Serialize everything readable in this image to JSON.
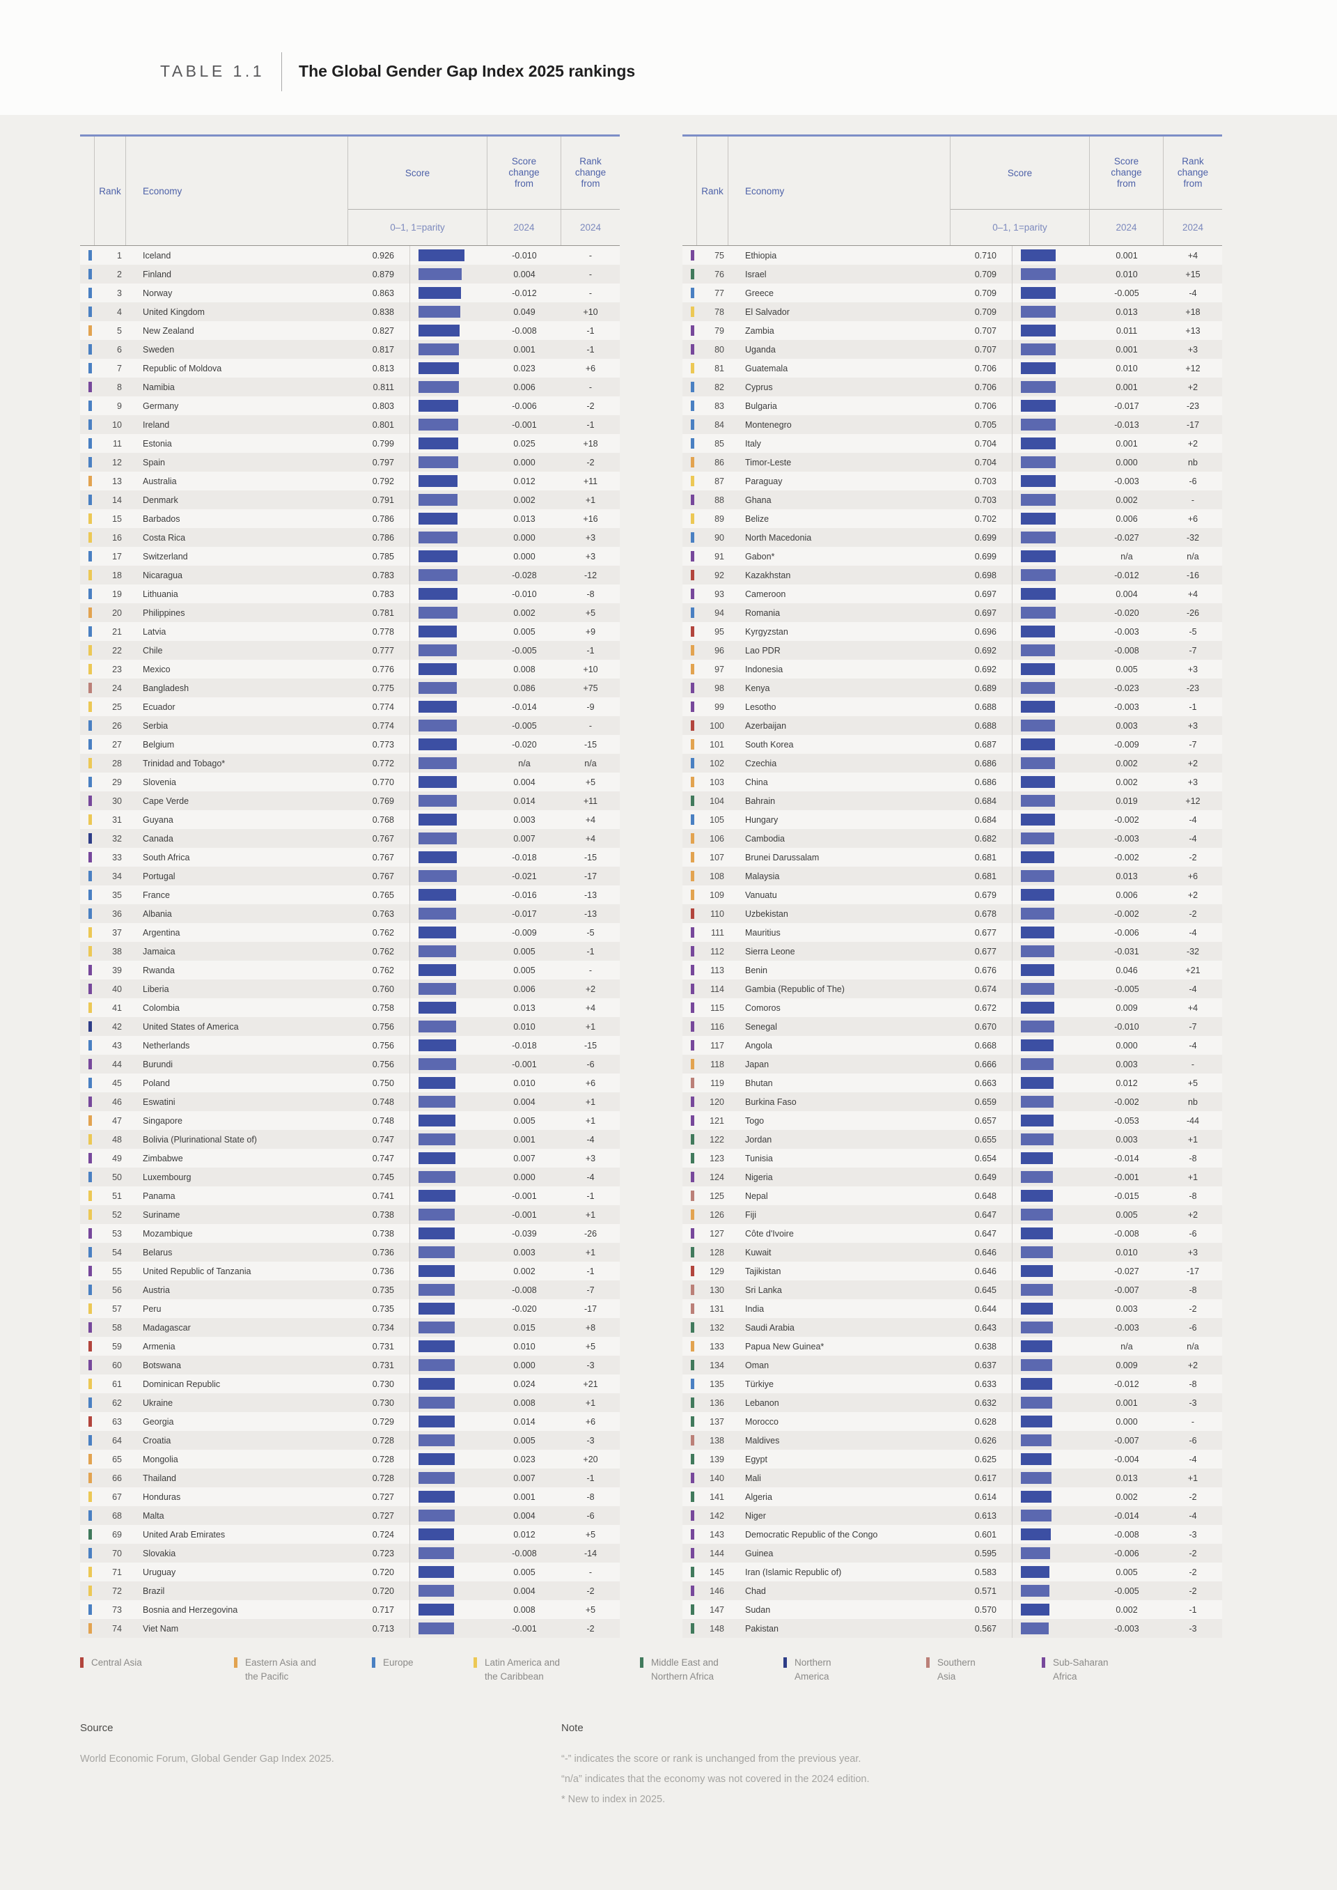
{
  "page": {
    "table_label": "TABLE 1.1",
    "title": "The Global Gender Gap Index 2025 rankings"
  },
  "columns": {
    "rank": "Rank",
    "economy": "Economy",
    "score": "Score",
    "score_sub": "0–1, 1=parity",
    "score_change": "Score change from",
    "rank_change": "Rank change from",
    "change_sub": "2024"
  },
  "bar_colors": {
    "dark": "#3c4fa3",
    "light": "#5b68b0"
  },
  "regions": {
    "ca": {
      "label": "Central Asia",
      "color": "#b2453d"
    },
    "eap": {
      "label": "Eastern Asia and the Pacific",
      "color": "#e2a350"
    },
    "eu": {
      "label": "Europe",
      "color": "#4a80c2"
    },
    "lac": {
      "label": "Latin America and the Caribbean",
      "color": "#ecc855"
    },
    "mena": {
      "label": "Middle East and Northern Africa",
      "color": "#417a5c"
    },
    "na": {
      "label": "Northern America",
      "color": "#2e3d87"
    },
    "sa": {
      "label": "Southern Asia",
      "color": "#bb8078"
    },
    "ssa": {
      "label": "Sub-Saharan Africa",
      "color": "#77489b"
    }
  },
  "legend": {
    "items": [
      {
        "region": "ca",
        "label": "Central Asia"
      },
      {
        "region": "eap",
        "label": "Eastern Asia and the Pacific"
      },
      {
        "region": "eu",
        "label": "Europe"
      },
      {
        "region": "lac",
        "label": "Latin America and the Caribbean"
      },
      {
        "region": "mena",
        "label": "Middle East and Northern Africa"
      },
      {
        "region": "na",
        "label": "Northern America"
      },
      {
        "region": "sa",
        "label": "Southern Asia"
      },
      {
        "region": "ssa",
        "label": "Sub-Saharan Africa"
      }
    ]
  },
  "row_fields": [
    "rank",
    "economy",
    "region",
    "score",
    "score_change_from_2024",
    "rank_change_from_2024"
  ],
  "rows": [
    [
      1,
      "Iceland",
      "eu",
      "0.926",
      "-0.010",
      "-"
    ],
    [
      2,
      "Finland",
      "eu",
      "0.879",
      "0.004",
      "-"
    ],
    [
      3,
      "Norway",
      "eu",
      "0.863",
      "-0.012",
      "-"
    ],
    [
      4,
      "United Kingdom",
      "eu",
      "0.838",
      "0.049",
      "+10"
    ],
    [
      5,
      "New Zealand",
      "eap",
      "0.827",
      "-0.008",
      "-1"
    ],
    [
      6,
      "Sweden",
      "eu",
      "0.817",
      "0.001",
      "-1"
    ],
    [
      7,
      "Republic of Moldova",
      "eu",
      "0.813",
      "0.023",
      "+6"
    ],
    [
      8,
      "Namibia",
      "ssa",
      "0.811",
      "0.006",
      "-"
    ],
    [
      9,
      "Germany",
      "eu",
      "0.803",
      "-0.006",
      "-2"
    ],
    [
      10,
      "Ireland",
      "eu",
      "0.801",
      "-0.001",
      "-1"
    ],
    [
      11,
      "Estonia",
      "eu",
      "0.799",
      "0.025",
      "+18"
    ],
    [
      12,
      "Spain",
      "eu",
      "0.797",
      "0.000",
      "-2"
    ],
    [
      13,
      "Australia",
      "eap",
      "0.792",
      "0.012",
      "+11"
    ],
    [
      14,
      "Denmark",
      "eu",
      "0.791",
      "0.002",
      "+1"
    ],
    [
      15,
      "Barbados",
      "lac",
      "0.786",
      "0.013",
      "+16"
    ],
    [
      16,
      "Costa Rica",
      "lac",
      "0.786",
      "0.000",
      "+3"
    ],
    [
      17,
      "Switzerland",
      "eu",
      "0.785",
      "0.000",
      "+3"
    ],
    [
      18,
      "Nicaragua",
      "lac",
      "0.783",
      "-0.028",
      "-12"
    ],
    [
      19,
      "Lithuania",
      "eu",
      "0.783",
      "-0.010",
      "-8"
    ],
    [
      20,
      "Philippines",
      "eap",
      "0.781",
      "0.002",
      "+5"
    ],
    [
      21,
      "Latvia",
      "eu",
      "0.778",
      "0.005",
      "+9"
    ],
    [
      22,
      "Chile",
      "lac",
      "0.777",
      "-0.005",
      "-1"
    ],
    [
      23,
      "Mexico",
      "lac",
      "0.776",
      "0.008",
      "+10"
    ],
    [
      24,
      "Bangladesh",
      "sa",
      "0.775",
      "0.086",
      "+75"
    ],
    [
      25,
      "Ecuador",
      "lac",
      "0.774",
      "-0.014",
      "-9"
    ],
    [
      26,
      "Serbia",
      "eu",
      "0.774",
      "-0.005",
      "-"
    ],
    [
      27,
      "Belgium",
      "eu",
      "0.773",
      "-0.020",
      "-15"
    ],
    [
      28,
      "Trinidad and Tobago*",
      "lac",
      "0.772",
      "n/a",
      "n/a"
    ],
    [
      29,
      "Slovenia",
      "eu",
      "0.770",
      "0.004",
      "+5"
    ],
    [
      30,
      "Cape Verde",
      "ssa",
      "0.769",
      "0.014",
      "+11"
    ],
    [
      31,
      "Guyana",
      "lac",
      "0.768",
      "0.003",
      "+4"
    ],
    [
      32,
      "Canada",
      "na",
      "0.767",
      "0.007",
      "+4"
    ],
    [
      33,
      "South Africa",
      "ssa",
      "0.767",
      "-0.018",
      "-15"
    ],
    [
      34,
      "Portugal",
      "eu",
      "0.767",
      "-0.021",
      "-17"
    ],
    [
      35,
      "France",
      "eu",
      "0.765",
      "-0.016",
      "-13"
    ],
    [
      36,
      "Albania",
      "eu",
      "0.763",
      "-0.017",
      "-13"
    ],
    [
      37,
      "Argentina",
      "lac",
      "0.762",
      "-0.009",
      "-5"
    ],
    [
      38,
      "Jamaica",
      "lac",
      "0.762",
      "0.005",
      "-1"
    ],
    [
      39,
      "Rwanda",
      "ssa",
      "0.762",
      "0.005",
      "-"
    ],
    [
      40,
      "Liberia",
      "ssa",
      "0.760",
      "0.006",
      "+2"
    ],
    [
      41,
      "Colombia",
      "lac",
      "0.758",
      "0.013",
      "+4"
    ],
    [
      42,
      "United States of America",
      "na",
      "0.756",
      "0.010",
      "+1"
    ],
    [
      43,
      "Netherlands",
      "eu",
      "0.756",
      "-0.018",
      "-15"
    ],
    [
      44,
      "Burundi",
      "ssa",
      "0.756",
      "-0.001",
      "-6"
    ],
    [
      45,
      "Poland",
      "eu",
      "0.750",
      "0.010",
      "+6"
    ],
    [
      46,
      "Eswatini",
      "ssa",
      "0.748",
      "0.004",
      "+1"
    ],
    [
      47,
      "Singapore",
      "eap",
      "0.748",
      "0.005",
      "+1"
    ],
    [
      48,
      "Bolivia (Plurinational State of)",
      "lac",
      "0.747",
      "0.001",
      "-4"
    ],
    [
      49,
      "Zimbabwe",
      "ssa",
      "0.747",
      "0.007",
      "+3"
    ],
    [
      50,
      "Luxembourg",
      "eu",
      "0.745",
      "0.000",
      "-4"
    ],
    [
      51,
      "Panama",
      "lac",
      "0.741",
      "-0.001",
      "-1"
    ],
    [
      52,
      "Suriname",
      "lac",
      "0.738",
      "-0.001",
      "+1"
    ],
    [
      53,
      "Mozambique",
      "ssa",
      "0.738",
      "-0.039",
      "-26"
    ],
    [
      54,
      "Belarus",
      "eu",
      "0.736",
      "0.003",
      "+1"
    ],
    [
      55,
      "United Republic of Tanzania",
      "ssa",
      "0.736",
      "0.002",
      "-1"
    ],
    [
      56,
      "Austria",
      "eu",
      "0.735",
      "-0.008",
      "-7"
    ],
    [
      57,
      "Peru",
      "lac",
      "0.735",
      "-0.020",
      "-17"
    ],
    [
      58,
      "Madagascar",
      "ssa",
      "0.734",
      "0.015",
      "+8"
    ],
    [
      59,
      "Armenia",
      "ca",
      "0.731",
      "0.010",
      "+5"
    ],
    [
      60,
      "Botswana",
      "ssa",
      "0.731",
      "0.000",
      "-3"
    ],
    [
      61,
      "Dominican Republic",
      "lac",
      "0.730",
      "0.024",
      "+21"
    ],
    [
      62,
      "Ukraine",
      "eu",
      "0.730",
      "0.008",
      "+1"
    ],
    [
      63,
      "Georgia",
      "ca",
      "0.729",
      "0.014",
      "+6"
    ],
    [
      64,
      "Croatia",
      "eu",
      "0.728",
      "0.005",
      "-3"
    ],
    [
      65,
      "Mongolia",
      "eap",
      "0.728",
      "0.023",
      "+20"
    ],
    [
      66,
      "Thailand",
      "eap",
      "0.728",
      "0.007",
      "-1"
    ],
    [
      67,
      "Honduras",
      "lac",
      "0.727",
      "0.001",
      "-8"
    ],
    [
      68,
      "Malta",
      "eu",
      "0.727",
      "0.004",
      "-6"
    ],
    [
      69,
      "United Arab Emirates",
      "mena",
      "0.724",
      "0.012",
      "+5"
    ],
    [
      70,
      "Slovakia",
      "eu",
      "0.723",
      "-0.008",
      "-14"
    ],
    [
      71,
      "Uruguay",
      "lac",
      "0.720",
      "0.005",
      "-"
    ],
    [
      72,
      "Brazil",
      "lac",
      "0.720",
      "0.004",
      "-2"
    ],
    [
      73,
      "Bosnia and Herzegovina",
      "eu",
      "0.717",
      "0.008",
      "+5"
    ],
    [
      74,
      "Viet Nam",
      "eap",
      "0.713",
      "-0.001",
      "-2"
    ],
    [
      75,
      "Ethiopia",
      "ssa",
      "0.710",
      "0.001",
      "+4"
    ],
    [
      76,
      "Israel",
      "mena",
      "0.709",
      "0.010",
      "+15"
    ],
    [
      77,
      "Greece",
      "eu",
      "0.709",
      "-0.005",
      "-4"
    ],
    [
      78,
      "El Salvador",
      "lac",
      "0.709",
      "0.013",
      "+18"
    ],
    [
      79,
      "Zambia",
      "ssa",
      "0.707",
      "0.011",
      "+13"
    ],
    [
      80,
      "Uganda",
      "ssa",
      "0.707",
      "0.001",
      "+3"
    ],
    [
      81,
      "Guatemala",
      "lac",
      "0.706",
      "0.010",
      "+12"
    ],
    [
      82,
      "Cyprus",
      "eu",
      "0.706",
      "0.001",
      "+2"
    ],
    [
      83,
      "Bulgaria",
      "eu",
      "0.706",
      "-0.017",
      "-23"
    ],
    [
      84,
      "Montenegro",
      "eu",
      "0.705",
      "-0.013",
      "-17"
    ],
    [
      85,
      "Italy",
      "eu",
      "0.704",
      "0.001",
      "+2"
    ],
    [
      86,
      "Timor-Leste",
      "eap",
      "0.704",
      "0.000",
      "nb"
    ],
    [
      87,
      "Paraguay",
      "lac",
      "0.703",
      "-0.003",
      "-6"
    ],
    [
      88,
      "Ghana",
      "ssa",
      "0.703",
      "0.002",
      "-"
    ],
    [
      89,
      "Belize",
      "lac",
      "0.702",
      "0.006",
      "+6"
    ],
    [
      90,
      "North Macedonia",
      "eu",
      "0.699",
      "-0.027",
      "-32"
    ],
    [
      91,
      "Gabon*",
      "ssa",
      "0.699",
      "n/a",
      "n/a"
    ],
    [
      92,
      "Kazakhstan",
      "ca",
      "0.698",
      "-0.012",
      "-16"
    ],
    [
      93,
      "Cameroon",
      "ssa",
      "0.697",
      "0.004",
      "+4"
    ],
    [
      94,
      "Romania",
      "eu",
      "0.697",
      "-0.020",
      "-26"
    ],
    [
      95,
      "Kyrgyzstan",
      "ca",
      "0.696",
      "-0.003",
      "-5"
    ],
    [
      96,
      "Lao PDR",
      "eap",
      "0.692",
      "-0.008",
      "-7"
    ],
    [
      97,
      "Indonesia",
      "eap",
      "0.692",
      "0.005",
      "+3"
    ],
    [
      98,
      "Kenya",
      "ssa",
      "0.689",
      "-0.023",
      "-23"
    ],
    [
      99,
      "Lesotho",
      "ssa",
      "0.688",
      "-0.003",
      "-1"
    ],
    [
      100,
      "Azerbaijan",
      "ca",
      "0.688",
      "0.003",
      "+3"
    ],
    [
      101,
      "South Korea",
      "eap",
      "0.687",
      "-0.009",
      "-7"
    ],
    [
      102,
      "Czechia",
      "eu",
      "0.686",
      "0.002",
      "+2"
    ],
    [
      103,
      "China",
      "eap",
      "0.686",
      "0.002",
      "+3"
    ],
    [
      104,
      "Bahrain",
      "mena",
      "0.684",
      "0.019",
      "+12"
    ],
    [
      105,
      "Hungary",
      "eu",
      "0.684",
      "-0.002",
      "-4"
    ],
    [
      106,
      "Cambodia",
      "eap",
      "0.682",
      "-0.003",
      "-4"
    ],
    [
      107,
      "Brunei Darussalam",
      "eap",
      "0.681",
      "-0.002",
      "-2"
    ],
    [
      108,
      "Malaysia",
      "eap",
      "0.681",
      "0.013",
      "+6"
    ],
    [
      109,
      "Vanuatu",
      "eap",
      "0.679",
      "0.006",
      "+2"
    ],
    [
      110,
      "Uzbekistan",
      "ca",
      "0.678",
      "-0.002",
      "-2"
    ],
    [
      111,
      "Mauritius",
      "ssa",
      "0.677",
      "-0.006",
      "-4"
    ],
    [
      112,
      "Sierra Leone",
      "ssa",
      "0.677",
      "-0.031",
      "-32"
    ],
    [
      113,
      "Benin",
      "ssa",
      "0.676",
      "0.046",
      "+21"
    ],
    [
      114,
      "Gambia (Republic of The)",
      "ssa",
      "0.674",
      "-0.005",
      "-4"
    ],
    [
      115,
      "Comoros",
      "ssa",
      "0.672",
      "0.009",
      "+4"
    ],
    [
      116,
      "Senegal",
      "ssa",
      "0.670",
      "-0.010",
      "-7"
    ],
    [
      117,
      "Angola",
      "ssa",
      "0.668",
      "0.000",
      "-4"
    ],
    [
      118,
      "Japan",
      "eap",
      "0.666",
      "0.003",
      "-"
    ],
    [
      119,
      "Bhutan",
      "sa",
      "0.663",
      "0.012",
      "+5"
    ],
    [
      120,
      "Burkina Faso",
      "ssa",
      "0.659",
      "-0.002",
      "nb"
    ],
    [
      121,
      "Togo",
      "ssa",
      "0.657",
      "-0.053",
      "-44"
    ],
    [
      122,
      "Jordan",
      "mena",
      "0.655",
      "0.003",
      "+1"
    ],
    [
      123,
      "Tunisia",
      "mena",
      "0.654",
      "-0.014",
      "-8"
    ],
    [
      124,
      "Nigeria",
      "ssa",
      "0.649",
      "-0.001",
      "+1"
    ],
    [
      125,
      "Nepal",
      "sa",
      "0.648",
      "-0.015",
      "-8"
    ],
    [
      126,
      "Fiji",
      "eap",
      "0.647",
      "0.005",
      "+2"
    ],
    [
      127,
      "Côte d'Ivoire",
      "ssa",
      "0.647",
      "-0.008",
      "-6"
    ],
    [
      128,
      "Kuwait",
      "mena",
      "0.646",
      "0.010",
      "+3"
    ],
    [
      129,
      "Tajikistan",
      "ca",
      "0.646",
      "-0.027",
      "-17"
    ],
    [
      130,
      "Sri Lanka",
      "sa",
      "0.645",
      "-0.007",
      "-8"
    ],
    [
      131,
      "India",
      "sa",
      "0.644",
      "0.003",
      "-2"
    ],
    [
      132,
      "Saudi Arabia",
      "mena",
      "0.643",
      "-0.003",
      "-6"
    ],
    [
      133,
      "Papua New Guinea*",
      "eap",
      "0.638",
      "n/a",
      "n/a"
    ],
    [
      134,
      "Oman",
      "mena",
      "0.637",
      "0.009",
      "+2"
    ],
    [
      135,
      "Türkiye",
      "eu",
      "0.633",
      "-0.012",
      "-8"
    ],
    [
      136,
      "Lebanon",
      "mena",
      "0.632",
      "0.001",
      "-3"
    ],
    [
      137,
      "Morocco",
      "mena",
      "0.628",
      "0.000",
      "-"
    ],
    [
      138,
      "Maldives",
      "sa",
      "0.626",
      "-0.007",
      "-6"
    ],
    [
      139,
      "Egypt",
      "mena",
      "0.625",
      "-0.004",
      "-4"
    ],
    [
      140,
      "Mali",
      "ssa",
      "0.617",
      "0.013",
      "+1"
    ],
    [
      141,
      "Algeria",
      "mena",
      "0.614",
      "0.002",
      "-2"
    ],
    [
      142,
      "Niger",
      "ssa",
      "0.613",
      "-0.014",
      "-4"
    ],
    [
      143,
      "Democratic Republic of the Congo",
      "ssa",
      "0.601",
      "-0.008",
      "-3"
    ],
    [
      144,
      "Guinea",
      "ssa",
      "0.595",
      "-0.006",
      "-2"
    ],
    [
      145,
      "Iran (Islamic Republic of)",
      "mena",
      "0.583",
      "0.005",
      "-2"
    ],
    [
      146,
      "Chad",
      "ssa",
      "0.571",
      "-0.005",
      "-2"
    ],
    [
      147,
      "Sudan",
      "mena",
      "0.570",
      "0.002",
      "-1"
    ],
    [
      148,
      "Pakistan",
      "mena",
      "0.567",
      "-0.003",
      "-3"
    ]
  ],
  "source": {
    "heading": "Source",
    "text": "World Economic Forum, Global Gender Gap Index 2025."
  },
  "note": {
    "heading": "Note",
    "lines": [
      "“-” indicates the score or rank is unchanged from the previous year.",
      "“n/a” indicates that the economy was not covered in the 2024 edition.",
      "* New to index in 2025."
    ]
  }
}
